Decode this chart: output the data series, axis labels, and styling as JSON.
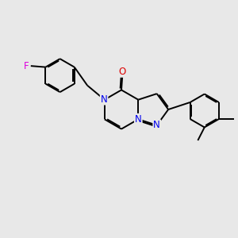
{
  "bg_color": "#e8e8e8",
  "bond_color": "#000000",
  "bond_width": 1.4,
  "dbo": 0.055,
  "atom_colors": {
    "N": "#0000ee",
    "O": "#dd0000",
    "F": "#dd00dd",
    "C": "#000000"
  },
  "font_size": 8.5,
  "fig_w": 3.0,
  "fig_h": 3.0,
  "dpi": 100
}
